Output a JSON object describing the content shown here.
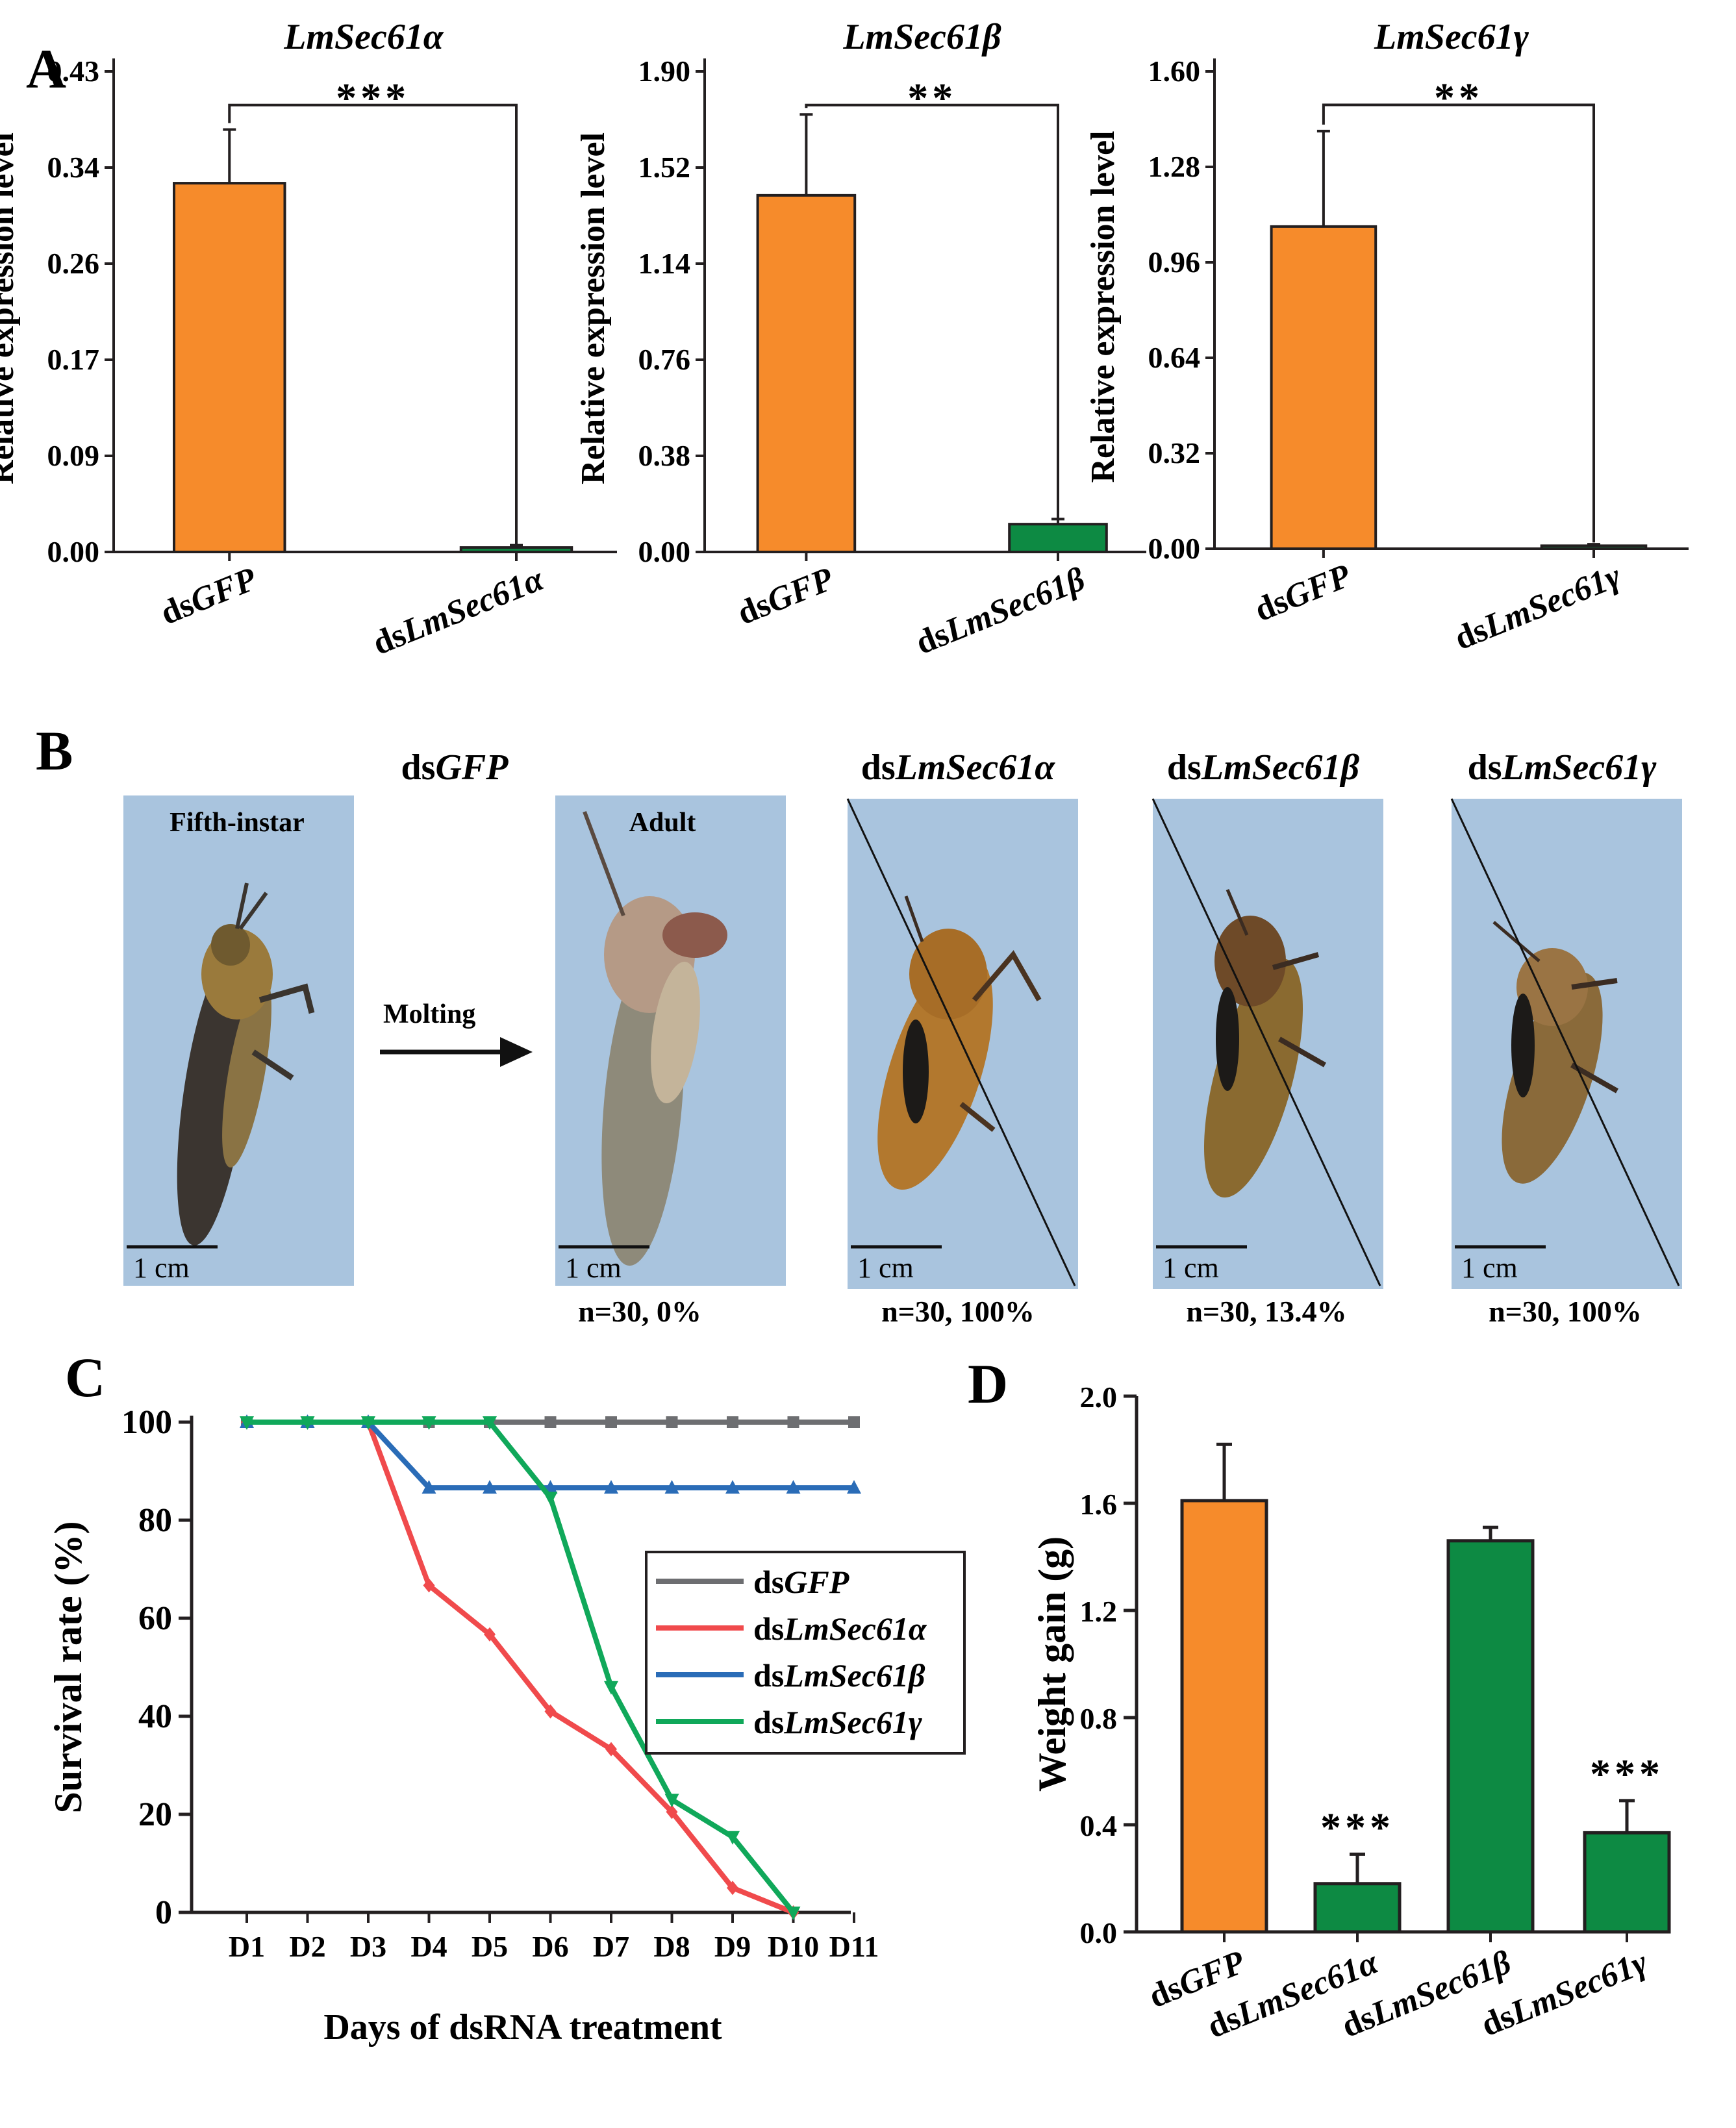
{
  "panels": {
    "A": {
      "letter": "A",
      "ylabel": "Relative expression level",
      "subcharts": [
        {
          "title": "LmSec61α",
          "ticks": [
            "0.00",
            "0.09",
            "0.17",
            "0.26",
            "0.34",
            "0.43"
          ],
          "categories": [
            "dsGFP",
            "dsLmSec61α"
          ],
          "cat_prefix": [
            "ds",
            "ds"
          ],
          "cat_italic": [
            "GFP",
            "LmSec61α"
          ],
          "significance": "***"
        },
        {
          "title": "LmSec61β",
          "ticks": [
            "0.00",
            "0.38",
            "0.76",
            "1.14",
            "1.52",
            "1.90"
          ],
          "categories": [
            "dsGFP",
            "dsLmSec61β"
          ],
          "cat_prefix": [
            "ds",
            "ds"
          ],
          "cat_italic": [
            "GFP",
            "LmSec61β"
          ],
          "significance": "**"
        },
        {
          "title": "LmSec61γ",
          "ticks": [
            "0.00",
            "0.32",
            "0.64",
            "0.96",
            "1.28",
            "1.60"
          ],
          "categories": [
            "dsGFP",
            "dsLmSec61γ"
          ],
          "cat_prefix": [
            "ds",
            "ds"
          ],
          "cat_italic": [
            "GFP",
            "LmSec61γ"
          ],
          "significance": "**"
        }
      ]
    },
    "B": {
      "letter": "B",
      "group_labels": [
        {
          "prefix": "ds",
          "italic": "GFP"
        },
        {
          "prefix": "ds",
          "italic": "LmSec61α"
        },
        {
          "prefix": "ds",
          "italic": "LmSec61β"
        },
        {
          "prefix": "ds",
          "italic": "LmSec61γ"
        }
      ],
      "photo_labels": [
        "Fifth-instar",
        "Adult"
      ],
      "arrow_label": "Molting",
      "scale_label": "1 cm",
      "captions": [
        "n=30, 0%",
        "n=30, 100%",
        "n=30, 13.4%",
        "n=30, 100%"
      ]
    },
    "C": {
      "letter": "C",
      "xlabel": "Days of dsRNA treatment",
      "ylabel": "Survival rate (%)",
      "yticks": [
        "0",
        "20",
        "40",
        "60",
        "80",
        "100"
      ],
      "xticks": [
        "D1",
        "D2",
        "D3",
        "D4",
        "D5",
        "D6",
        "D7",
        "D8",
        "D9",
        "D10",
        "D11"
      ],
      "legend": [
        {
          "prefix": "ds",
          "italic": "GFP"
        },
        {
          "prefix": "ds",
          "italic": "LmSec61α"
        },
        {
          "prefix": "ds",
          "italic": "LmSec61β"
        },
        {
          "prefix": "ds",
          "italic": "LmSec61γ"
        }
      ]
    },
    "D": {
      "letter": "D",
      "ylabel": "Weight gain (g)",
      "yticks": [
        "0.0",
        "0.4",
        "0.8",
        "1.2",
        "1.6",
        "2.0"
      ],
      "categories": [
        "dsGFP",
        "dsLmSec61α",
        "dsLmSec61β",
        "dsLmSec61γ"
      ],
      "cat_prefix": [
        "ds",
        "ds",
        "ds",
        "ds"
      ],
      "cat_italic": [
        "GFP",
        "LmSec61α",
        "LmSec61β",
        "LmSec61γ"
      ],
      "significance": [
        "",
        "***",
        "",
        "***"
      ]
    }
  },
  "colors": {
    "orange": "#f68b2b",
    "green": "#0d8a43",
    "gray": "#6d6e71",
    "red": "#f04a4c",
    "blue": "#2a6cb7",
    "teal": "#10a85a",
    "photo_bg": "#a9c4de"
  },
  "chart_data": [
    {
      "type": "bar",
      "title": "LmSec61α",
      "ylabel": "Relative expression level",
      "categories": [
        "dsGFP",
        "dsLmSec61α"
      ],
      "values": [
        0.33,
        0.004
      ],
      "errors": [
        0.048,
        0.002
      ],
      "ylim": [
        0,
        0.43
      ]
    },
    {
      "type": "bar",
      "title": "LmSec61β",
      "ylabel": "Relative expression level",
      "categories": [
        "dsGFP",
        "dsLmSec61β"
      ],
      "values": [
        1.41,
        0.11
      ],
      "errors": [
        0.32,
        0.02
      ],
      "ylim": [
        0,
        1.9
      ]
    },
    {
      "type": "bar",
      "title": "LmSec61γ",
      "ylabel": "Relative expression level",
      "categories": [
        "dsGFP",
        "dsLmSec61γ"
      ],
      "values": [
        1.08,
        0.01
      ],
      "errors": [
        0.32,
        0.005
      ],
      "ylim": [
        0,
        1.6
      ]
    },
    {
      "type": "line",
      "xlabel": "Days of dsRNA treatment",
      "ylabel": "Survival rate (%)",
      "x": [
        "D1",
        "D2",
        "D3",
        "D4",
        "D5",
        "D6",
        "D7",
        "D8",
        "D9",
        "D10",
        "D11"
      ],
      "ylim": [
        0,
        100
      ],
      "legend_position": "right",
      "series": [
        {
          "name": "dsGFP",
          "values": [
            100,
            100,
            100,
            100,
            100,
            100,
            100,
            100,
            100,
            100,
            100
          ]
        },
        {
          "name": "dsLmSec61α",
          "values": [
            100,
            100,
            100,
            66.7,
            56.7,
            41,
            33.3,
            20.5,
            5,
            0,
            null
          ]
        },
        {
          "name": "dsLmSec61β",
          "values": [
            100,
            100,
            100,
            86.6,
            86.6,
            86.6,
            86.6,
            86.6,
            86.6,
            86.6,
            86.6
          ]
        },
        {
          "name": "dsLmSec61γ",
          "values": [
            100,
            100,
            100,
            100,
            100,
            84.6,
            46,
            23,
            15.4,
            0,
            null
          ]
        }
      ]
    },
    {
      "type": "bar",
      "ylabel": "Weight gain (g)",
      "categories": [
        "dsGFP",
        "dsLmSec61α",
        "dsLmSec61β",
        "dsLmSec61γ"
      ],
      "values": [
        1.61,
        0.18,
        1.46,
        0.37
      ],
      "errors": [
        0.21,
        0.11,
        0.05,
        0.12
      ],
      "ylim": [
        0,
        2.0
      ]
    }
  ]
}
